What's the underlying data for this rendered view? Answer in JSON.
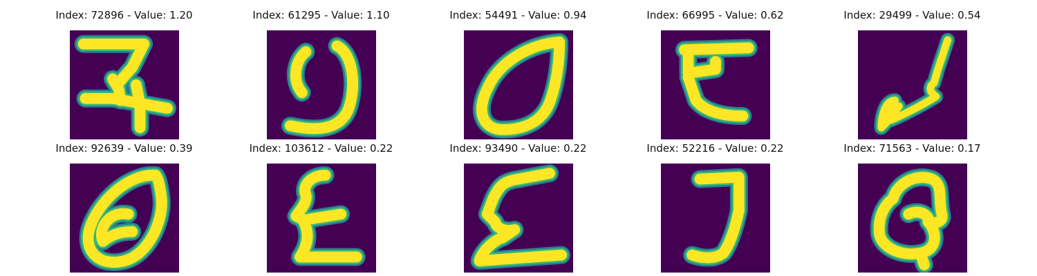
{
  "colors": {
    "background": "#440154",
    "edge_outer": "#2c7a8e",
    "edge_inner": "#35b779",
    "stroke": "#fde725"
  },
  "images": [
    {
      "title": "Index: 72896 - Value: 1.20"
    },
    {
      "title": "Index: 61295 - Value: 1.10"
    },
    {
      "title": "Index: 54491 - Value: 0.94"
    },
    {
      "title": "Index: 66995 - Value: 0.62"
    },
    {
      "title": "Index: 29499 - Value: 0.54"
    },
    {
      "title": "Index: 92639 - Value: 0.39"
    },
    {
      "title": "Index: 103612 - Value: 0.22"
    },
    {
      "title": "Index: 93490 - Value: 0.22"
    },
    {
      "title": "Index: 52216 - Value: 0.22"
    },
    {
      "title": "Index: 71563 - Value: 0.17"
    }
  ]
}
